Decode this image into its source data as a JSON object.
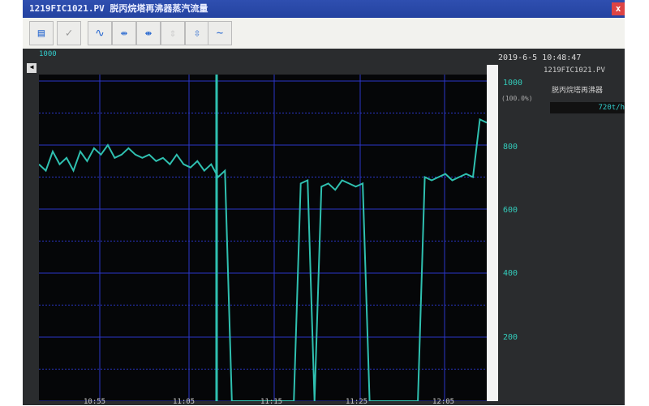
{
  "window": {
    "title": "1219FIC1021.PV 脱丙烷塔再沸器蒸汽流量",
    "close": "x"
  },
  "toolbar": {
    "buttons": [
      "print-icon",
      "check-icon",
      "trend-cursor-icon",
      "zoom-in-x-icon",
      "zoom-out-x-icon",
      "zoom-in-y-icon",
      "zoom-out-y-icon",
      "wave-icon"
    ]
  },
  "trend": {
    "tag_label": "1000",
    "datetime": "2019-6-5 10:48:47",
    "point_tag": "1219FIC1021.PV",
    "point_desc": "脱丙烷塔再沸器",
    "point_value": "720t/h",
    "scale_unit": "(100.0%)",
    "y_ticks": [
      "1000",
      "800",
      "600",
      "400",
      "200"
    ],
    "x_ticks": [
      "10:55",
      "11:05",
      "11:15",
      "11:25",
      "12:05"
    ],
    "ylim": [
      0,
      1000
    ],
    "line_color": "#2fc0b0",
    "grid_color": "#2a36c8",
    "values": [
      740,
      720,
      780,
      740,
      760,
      720,
      780,
      750,
      790,
      770,
      800,
      760,
      770,
      790,
      770,
      760,
      770,
      750,
      760,
      740,
      770,
      740,
      730,
      750,
      720,
      740,
      700,
      720,
      0,
      0,
      0,
      0,
      0,
      0,
      0,
      0,
      0,
      0,
      680,
      690,
      0,
      670,
      680,
      660,
      690,
      680,
      670,
      680,
      0,
      0,
      0,
      0,
      0,
      0,
      0,
      0,
      700,
      690,
      700,
      710,
      690,
      700,
      710,
      700,
      880,
      870
    ]
  }
}
